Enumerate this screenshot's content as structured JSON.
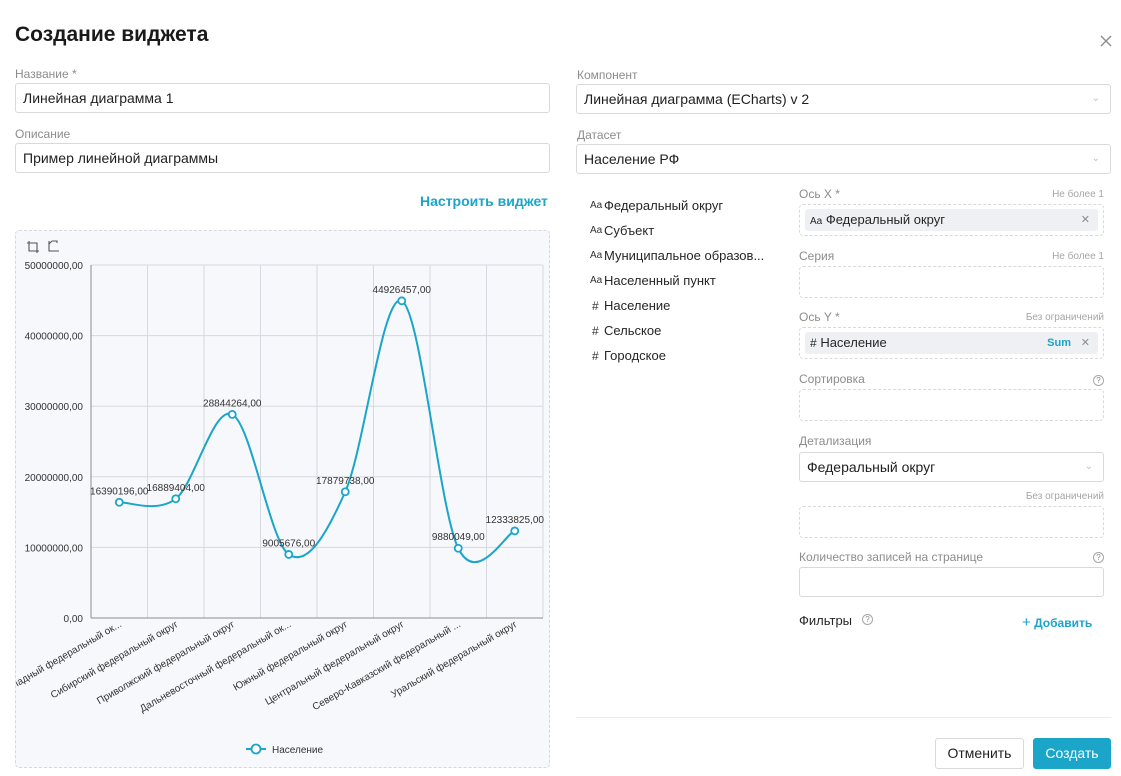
{
  "dialog": {
    "title": "Создание виджета"
  },
  "form": {
    "name_label": "Название *",
    "name_value": "Линейная диаграмма 1",
    "desc_label": "Описание",
    "desc_value": "Пример линейной диаграммы",
    "configure_link": "Настроить виджет",
    "component_label": "Компонент",
    "component_value": "Линейная диаграмма (ECharts) v 2",
    "dataset_label": "Датасет",
    "dataset_value": "Население РФ"
  },
  "fields": [
    {
      "type": "Aa",
      "name": "Федеральный округ"
    },
    {
      "type": "Aa",
      "name": "Субъект"
    },
    {
      "type": "Aa",
      "name": "Муниципальное образов..."
    },
    {
      "type": "Aa",
      "name": "Населенный пункт"
    },
    {
      "type": "#",
      "name": "Население"
    },
    {
      "type": "#",
      "name": "Сельское"
    },
    {
      "type": "#",
      "name": "Городское"
    }
  ],
  "config": {
    "x_label": "Ось X *",
    "x_hint": "Не более 1",
    "x_chip_type": "Aa",
    "x_chip": "Федеральный округ",
    "series_label": "Серия",
    "series_hint": "Не более 1",
    "y_label": "Ось Y *",
    "y_hint": "Без ограничений",
    "y_chip_type": "#",
    "y_chip": "Население",
    "y_agg": "Sum",
    "sort_label": "Сортировка",
    "detail_label": "Детализация",
    "detail_value": "Федеральный округ",
    "detail_hint": "Без ограничений",
    "records_label": "Количество записей на странице",
    "filters_label": "Фильтры",
    "add_label": "Добавить"
  },
  "buttons": {
    "cancel": "Отменить",
    "create": "Создать"
  },
  "colors": {
    "accent": "#1aa5c9"
  },
  "chart_data": {
    "type": "line",
    "categories": [
      "Северо-Западный федеральный ок...",
      "Сибирский федеральный округ",
      "Приволжский федеральный округ",
      "Дальневосточный федеральный ок...",
      "Южный федеральный округ",
      "Центральный федеральный округ",
      "Северо-Кавказский федеральный ...",
      "Уральский федеральный округ"
    ],
    "series": [
      {
        "name": "Население",
        "values": [
          16390196,
          16889404,
          28844264,
          9005676,
          17879738,
          44926457,
          9880049,
          12333825
        ]
      }
    ],
    "value_labels": [
      "16390196,00",
      "16889404,00",
      "28844264,00",
      "9005676,00",
      "17879738,00",
      "44926457,00",
      "9880049,00",
      "12333825,00"
    ],
    "y_ticks": [
      "0,00",
      "10000000,00",
      "20000000,00",
      "30000000,00",
      "40000000,00",
      "50000000,00"
    ],
    "ylim": [
      0,
      50000000
    ],
    "smooth": true,
    "grid": true,
    "legend_position": "bottom",
    "color": "#1aa5c9"
  }
}
